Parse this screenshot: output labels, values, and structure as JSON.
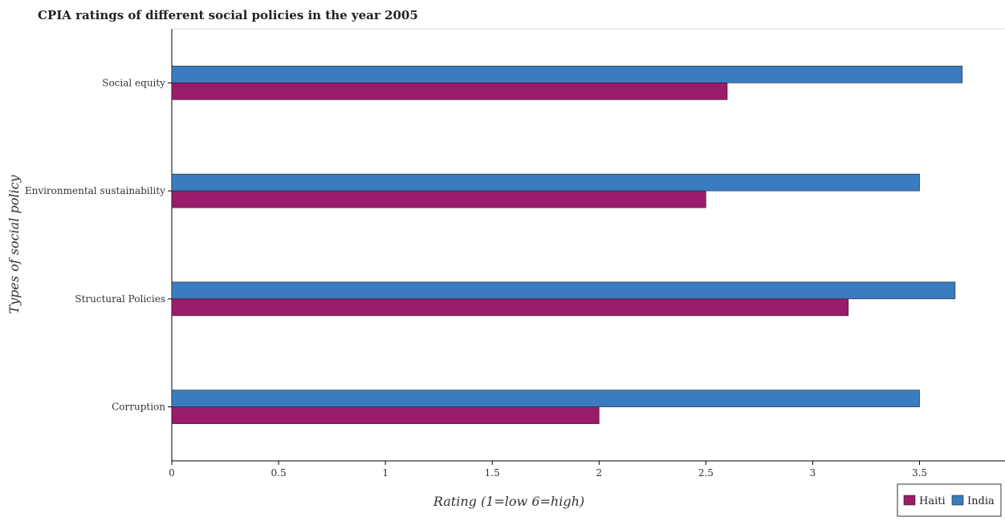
{
  "chart_data": {
    "type": "bar",
    "orientation": "horizontal",
    "title": "CPIA ratings of different social policies in the year 2005",
    "xlabel": "Rating (1=low 6=high)",
    "ylabel": "Types of social policy",
    "categories": [
      "Social equity",
      "Environmental sustainability",
      "Structural Policies",
      "Corruption"
    ],
    "series": [
      {
        "name": "Haiti",
        "color": "#9b1b6b",
        "values": [
          2.6,
          2.5,
          3.1667,
          2.0
        ]
      },
      {
        "name": "India",
        "color": "#3a7cbf",
        "values": [
          3.7,
          3.5,
          3.6667,
          3.5
        ]
      }
    ],
    "xlim": [
      0,
      3.9
    ],
    "xticks": [
      "0",
      "0.5",
      "1",
      "1.5",
      "2",
      "2.5",
      "3",
      "3.5"
    ],
    "xtick_values": [
      0,
      0.5,
      1,
      1.5,
      2,
      2.5,
      3,
      3.5
    ],
    "grid": false,
    "legend_position": "bottom-right"
  }
}
